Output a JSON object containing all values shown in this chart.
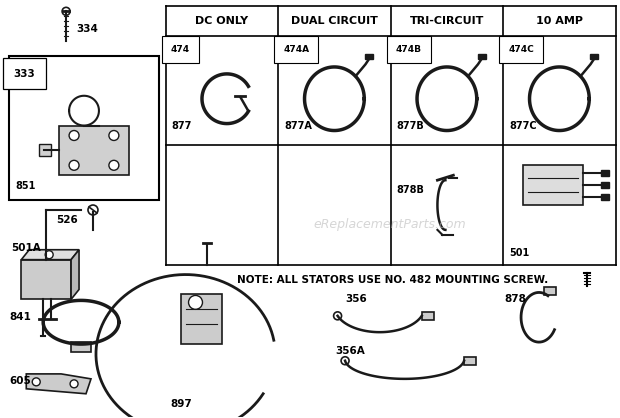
{
  "bg_color": "#ffffff",
  "line_color": "#000000",
  "part_color": "#1a1a1a",
  "watermark_text": "eReplacementParts.com",
  "watermark_color": "#bbbbbb",
  "note_text": "NOTE: ALL STATORS USE NO. 482 MOUNTING SCREW.",
  "table_headers": [
    "DC ONLY",
    "DUAL CIRCUIT",
    "TRI-CIRCUIT",
    "10 AMP"
  ],
  "row1_labels": [
    "474",
    "474A",
    "474B",
    "474C"
  ],
  "row1_sublabels": [
    "877",
    "877A",
    "877B",
    "877C"
  ],
  "row3_labels": [
    "878B",
    "501"
  ],
  "left_labels": [
    "334",
    "333",
    "851",
    "526",
    "501A",
    "841",
    "605",
    "897"
  ],
  "bottom_labels": [
    "356",
    "356A",
    "878"
  ]
}
